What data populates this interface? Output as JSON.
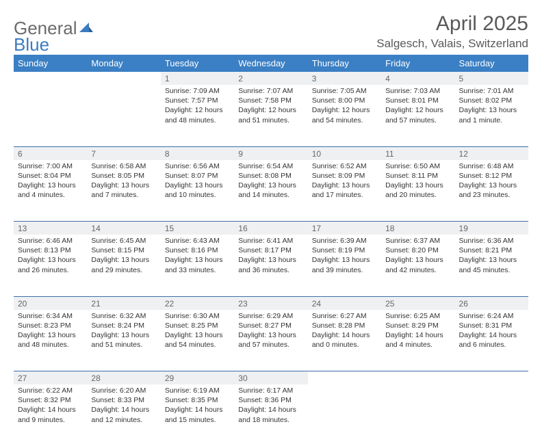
{
  "logo": {
    "text_a": "General",
    "text_b": "Blue",
    "triangle_color": "#3b7bbf"
  },
  "title": "April 2025",
  "location": "Salgesch, Valais, Switzerland",
  "colors": {
    "header_bg": "#3b7fc4",
    "header_text": "#ffffff",
    "daynum_bg": "#eef0f2",
    "daynum_text": "#666666",
    "cell_text": "#333333",
    "divider": "#3b6fa8",
    "page_bg": "#ffffff",
    "title_color": "#595959"
  },
  "day_headers": [
    "Sunday",
    "Monday",
    "Tuesday",
    "Wednesday",
    "Thursday",
    "Friday",
    "Saturday"
  ],
  "weeks": [
    [
      null,
      null,
      {
        "n": "1",
        "sr": "7:09 AM",
        "ss": "7:57 PM",
        "dl": "12 hours and 48 minutes."
      },
      {
        "n": "2",
        "sr": "7:07 AM",
        "ss": "7:58 PM",
        "dl": "12 hours and 51 minutes."
      },
      {
        "n": "3",
        "sr": "7:05 AM",
        "ss": "8:00 PM",
        "dl": "12 hours and 54 minutes."
      },
      {
        "n": "4",
        "sr": "7:03 AM",
        "ss": "8:01 PM",
        "dl": "12 hours and 57 minutes."
      },
      {
        "n": "5",
        "sr": "7:01 AM",
        "ss": "8:02 PM",
        "dl": "13 hours and 1 minute."
      }
    ],
    [
      {
        "n": "6",
        "sr": "7:00 AM",
        "ss": "8:04 PM",
        "dl": "13 hours and 4 minutes."
      },
      {
        "n": "7",
        "sr": "6:58 AM",
        "ss": "8:05 PM",
        "dl": "13 hours and 7 minutes."
      },
      {
        "n": "8",
        "sr": "6:56 AM",
        "ss": "8:07 PM",
        "dl": "13 hours and 10 minutes."
      },
      {
        "n": "9",
        "sr": "6:54 AM",
        "ss": "8:08 PM",
        "dl": "13 hours and 14 minutes."
      },
      {
        "n": "10",
        "sr": "6:52 AM",
        "ss": "8:09 PM",
        "dl": "13 hours and 17 minutes."
      },
      {
        "n": "11",
        "sr": "6:50 AM",
        "ss": "8:11 PM",
        "dl": "13 hours and 20 minutes."
      },
      {
        "n": "12",
        "sr": "6:48 AM",
        "ss": "8:12 PM",
        "dl": "13 hours and 23 minutes."
      }
    ],
    [
      {
        "n": "13",
        "sr": "6:46 AM",
        "ss": "8:13 PM",
        "dl": "13 hours and 26 minutes."
      },
      {
        "n": "14",
        "sr": "6:45 AM",
        "ss": "8:15 PM",
        "dl": "13 hours and 29 minutes."
      },
      {
        "n": "15",
        "sr": "6:43 AM",
        "ss": "8:16 PM",
        "dl": "13 hours and 33 minutes."
      },
      {
        "n": "16",
        "sr": "6:41 AM",
        "ss": "8:17 PM",
        "dl": "13 hours and 36 minutes."
      },
      {
        "n": "17",
        "sr": "6:39 AM",
        "ss": "8:19 PM",
        "dl": "13 hours and 39 minutes."
      },
      {
        "n": "18",
        "sr": "6:37 AM",
        "ss": "8:20 PM",
        "dl": "13 hours and 42 minutes."
      },
      {
        "n": "19",
        "sr": "6:36 AM",
        "ss": "8:21 PM",
        "dl": "13 hours and 45 minutes."
      }
    ],
    [
      {
        "n": "20",
        "sr": "6:34 AM",
        "ss": "8:23 PM",
        "dl": "13 hours and 48 minutes."
      },
      {
        "n": "21",
        "sr": "6:32 AM",
        "ss": "8:24 PM",
        "dl": "13 hours and 51 minutes."
      },
      {
        "n": "22",
        "sr": "6:30 AM",
        "ss": "8:25 PM",
        "dl": "13 hours and 54 minutes."
      },
      {
        "n": "23",
        "sr": "6:29 AM",
        "ss": "8:27 PM",
        "dl": "13 hours and 57 minutes."
      },
      {
        "n": "24",
        "sr": "6:27 AM",
        "ss": "8:28 PM",
        "dl": "14 hours and 0 minutes."
      },
      {
        "n": "25",
        "sr": "6:25 AM",
        "ss": "8:29 PM",
        "dl": "14 hours and 4 minutes."
      },
      {
        "n": "26",
        "sr": "6:24 AM",
        "ss": "8:31 PM",
        "dl": "14 hours and 6 minutes."
      }
    ],
    [
      {
        "n": "27",
        "sr": "6:22 AM",
        "ss": "8:32 PM",
        "dl": "14 hours and 9 minutes."
      },
      {
        "n": "28",
        "sr": "6:20 AM",
        "ss": "8:33 PM",
        "dl": "14 hours and 12 minutes."
      },
      {
        "n": "29",
        "sr": "6:19 AM",
        "ss": "8:35 PM",
        "dl": "14 hours and 15 minutes."
      },
      {
        "n": "30",
        "sr": "6:17 AM",
        "ss": "8:36 PM",
        "dl": "14 hours and 18 minutes."
      },
      null,
      null,
      null
    ]
  ],
  "labels": {
    "sunrise": "Sunrise:",
    "sunset": "Sunset:",
    "daylight": "Daylight:"
  }
}
